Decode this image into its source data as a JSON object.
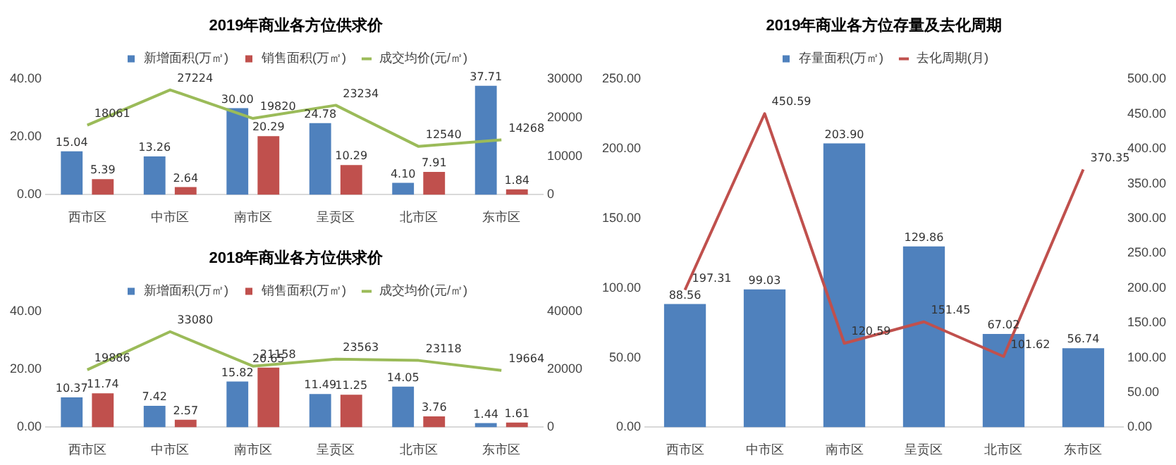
{
  "chart_data": [
    {
      "type": "bar",
      "title": "2019年商业各方位供求价",
      "categories": [
        "西市区",
        "中市区",
        "南市区",
        "呈贡区",
        "北市区",
        "东市区"
      ],
      "legend": "top",
      "ylim": [
        0,
        40
      ],
      "yticks": [
        {
          "value": 0,
          "label": "0.00"
        },
        {
          "value": 20,
          "label": "20.00"
        },
        {
          "value": 40,
          "label": "40.00"
        }
      ],
      "y2lim": [
        0,
        30000
      ],
      "y2ticks": [
        0,
        10000,
        20000,
        30000
      ],
      "series": [
        {
          "name": "新增面积(万㎡)",
          "color": "#4f81bd",
          "values": [
            15.04,
            13.26,
            30.0,
            24.78,
            4.1,
            37.71
          ],
          "value_labels": [
            "15.04",
            "13.26",
            "30.00",
            "24.78",
            "4.10",
            "37.71"
          ]
        },
        {
          "name": "销售面积(万㎡)",
          "color": "#c0504d",
          "values": [
            5.39,
            2.64,
            20.29,
            10.29,
            7.91,
            1.84
          ],
          "value_labels": [
            "5.39",
            "2.64",
            "20.29",
            "10.29",
            "7.91",
            "1.84"
          ]
        },
        {
          "name": "成交均价(元/㎡)",
          "type": "line",
          "axis": "y2",
          "color": "#9bbb59",
          "values": [
            18061,
            27224,
            19820,
            23234,
            12540,
            14268
          ],
          "value_labels": [
            "18061",
            "27224",
            "19820",
            "23234",
            "12540",
            "14268"
          ]
        }
      ]
    },
    {
      "type": "bar",
      "title": "2018年商业各方位供求价",
      "categories": [
        "西市区",
        "中市区",
        "南市区",
        "呈贡区",
        "北市区",
        "东市区"
      ],
      "legend": "top",
      "ylim": [
        0,
        40
      ],
      "yticks": [
        {
          "value": 0,
          "label": "0.00"
        },
        {
          "value": 20,
          "label": "20.00"
        },
        {
          "value": 40,
          "label": "40.00"
        }
      ],
      "y2lim": [
        0,
        40000
      ],
      "y2ticks": [
        0,
        20000,
        40000
      ],
      "series": [
        {
          "name": "新增面积(万㎡)",
          "color": "#4f81bd",
          "values": [
            10.37,
            7.42,
            15.82,
            11.49,
            14.05,
            1.44
          ],
          "value_labels": [
            "10.37",
            "7.42",
            "15.82",
            "11.49",
            "14.05",
            "1.44"
          ]
        },
        {
          "name": "销售面积(万㎡)",
          "color": "#c0504d",
          "values": [
            11.74,
            2.57,
            20.65,
            11.25,
            3.76,
            1.61
          ],
          "value_labels": [
            "11.74",
            "2.57",
            "20.65",
            "11.25",
            "3.76",
            "1.61"
          ]
        },
        {
          "name": "成交均价(元/㎡)",
          "type": "line",
          "axis": "y2",
          "color": "#9bbb59",
          "values": [
            19886,
            33080,
            21158,
            23563,
            23118,
            19664
          ],
          "value_labels": [
            "19886",
            "33080",
            "21158",
            "23563",
            "23118",
            "19664"
          ]
        }
      ]
    },
    {
      "type": "bar",
      "title": "2019年商业各方位存量及去化周期",
      "categories": [
        "西市区",
        "中市区",
        "南市区",
        "呈贡区",
        "北市区",
        "东市区"
      ],
      "legend": "top",
      "ylim": [
        0,
        250
      ],
      "yticks": [
        {
          "value": 0,
          "label": "0.00"
        },
        {
          "value": 50,
          "label": "50.00"
        },
        {
          "value": 100,
          "label": "100.00"
        },
        {
          "value": 150,
          "label": "150.00"
        },
        {
          "value": 200,
          "label": "200.00"
        },
        {
          "value": 250,
          "label": "250.00"
        }
      ],
      "y2lim": [
        0,
        500
      ],
      "y2ticks": [
        {
          "value": 0,
          "label": "0.00"
        },
        {
          "value": 50,
          "label": "50.00"
        },
        {
          "value": 100,
          "label": "100.00"
        },
        {
          "value": 150,
          "label": "150.00"
        },
        {
          "value": 200,
          "label": "200.00"
        },
        {
          "value": 250,
          "label": "250.00"
        },
        {
          "value": 300,
          "label": "300.00"
        },
        {
          "value": 350,
          "label": "350.00"
        },
        {
          "value": 400,
          "label": "400.00"
        },
        {
          "value": 450,
          "label": "450.00"
        },
        {
          "value": 500,
          "label": "500.00"
        }
      ],
      "series": [
        {
          "name": "存量面积(万㎡)",
          "color": "#4f81bd",
          "values": [
            88.56,
            99.03,
            203.9,
            129.86,
            67.02,
            56.74
          ],
          "value_labels": [
            "88.56",
            "99.03",
            "203.90",
            "129.86",
            "67.02",
            "56.74"
          ]
        },
        {
          "name": "去化周期(月)",
          "type": "line",
          "axis": "y2",
          "color": "#c0504d",
          "values": [
            197.31,
            450.59,
            120.59,
            151.45,
            101.62,
            370.35
          ],
          "value_labels": [
            "197.31",
            "450.59",
            "120.59",
            "151.45",
            "101.62",
            "370.35"
          ]
        }
      ]
    }
  ]
}
